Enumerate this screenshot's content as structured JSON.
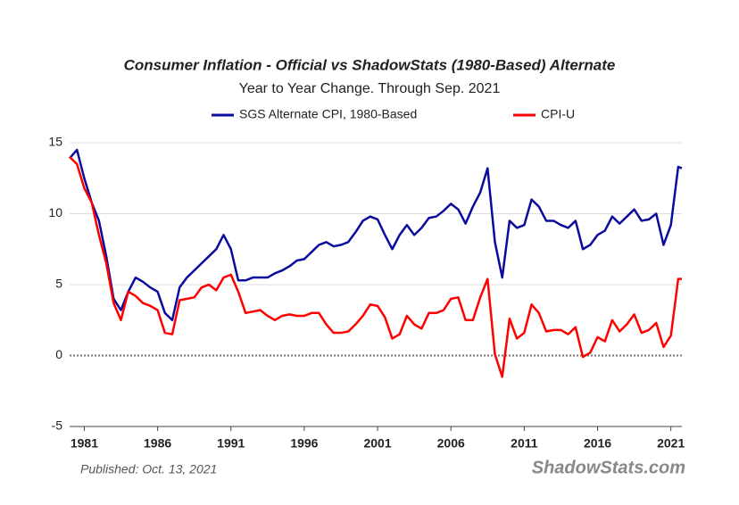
{
  "chart_data": {
    "type": "line",
    "title": "Consumer Inflation - Official vs ShadowStats (1980-Based) Alternate",
    "subtitle": "Year to Year Change. Through Sep. 2021",
    "annotations": [
      "Published: Oct. 13, 2021",
      "ShadowStats.com"
    ],
    "x": [
      1980,
      1980.5,
      1981,
      1981.5,
      1982,
      1982.5,
      1983,
      1983.5,
      1984,
      1984.5,
      1985,
      1985.5,
      1986,
      1986.5,
      1987,
      1987.5,
      1988,
      1988.5,
      1989,
      1989.5,
      1990,
      1990.5,
      1991,
      1991.5,
      1992,
      1992.5,
      1993,
      1993.5,
      1994,
      1994.5,
      1995,
      1995.5,
      1996,
      1996.5,
      1997,
      1997.5,
      1998,
      1998.5,
      1999,
      1999.5,
      2000,
      2000.5,
      2001,
      2001.5,
      2002,
      2002.5,
      2003,
      2003.5,
      2004,
      2004.5,
      2005,
      2005.5,
      2006,
      2006.5,
      2007,
      2007.5,
      2008,
      2008.5,
      2009,
      2009.5,
      2010,
      2010.5,
      2011,
      2011.5,
      2012,
      2012.5,
      2013,
      2013.5,
      2014,
      2014.5,
      2015,
      2015.5,
      2016,
      2016.5,
      2017,
      2017.5,
      2018,
      2018.5,
      2019,
      2019.5,
      2020,
      2020.5,
      2021,
      2021.5,
      2021.75
    ],
    "series": [
      {
        "name": "SGS Alternate CPI, 1980-Based",
        "color": "#0a0a9e",
        "values": [
          13.9,
          14.5,
          12.5,
          10.8,
          9.5,
          7.0,
          4.0,
          3.2,
          4.5,
          5.5,
          5.2,
          4.8,
          4.5,
          3.0,
          2.5,
          4.8,
          5.5,
          6.0,
          6.5,
          7.0,
          7.5,
          8.5,
          7.5,
          5.3,
          5.3,
          5.5,
          5.5,
          5.5,
          5.8,
          6.0,
          6.3,
          6.7,
          6.8,
          7.3,
          7.8,
          8.0,
          7.7,
          7.8,
          8.0,
          8.7,
          9.5,
          9.8,
          9.6,
          8.5,
          7.5,
          8.5,
          9.2,
          8.5,
          9.0,
          9.7,
          9.8,
          10.2,
          10.7,
          10.3,
          9.3,
          10.5,
          11.5,
          13.2,
          8.0,
          5.5,
          9.5,
          9.0,
          9.2,
          11.0,
          10.5,
          9.5,
          9.5,
          9.2,
          9.0,
          9.5,
          7.5,
          7.8,
          8.5,
          8.8,
          9.8,
          9.3,
          9.8,
          10.3,
          9.5,
          9.6,
          10.0,
          7.8,
          9.2,
          13.3,
          13.2
        ]
      },
      {
        "name": "CPI-U",
        "color": "#ff0000",
        "values": [
          14.0,
          13.5,
          11.8,
          10.8,
          8.5,
          6.5,
          3.7,
          2.5,
          4.5,
          4.2,
          3.7,
          3.5,
          3.2,
          1.6,
          1.5,
          3.9,
          4.0,
          4.1,
          4.8,
          5.0,
          4.6,
          5.5,
          5.7,
          4.5,
          3.0,
          3.1,
          3.2,
          2.8,
          2.5,
          2.8,
          2.9,
          2.8,
          2.8,
          3.0,
          3.0,
          2.2,
          1.6,
          1.6,
          1.7,
          2.2,
          2.8,
          3.6,
          3.5,
          2.7,
          1.2,
          1.5,
          2.8,
          2.2,
          1.9,
          3.0,
          3.0,
          3.2,
          4.0,
          4.1,
          2.5,
          2.5,
          4.1,
          5.4,
          0.1,
          -1.5,
          2.6,
          1.2,
          1.6,
          3.6,
          3.0,
          1.7,
          1.8,
          1.8,
          1.5,
          2.0,
          -0.1,
          0.2,
          1.3,
          1.0,
          2.5,
          1.7,
          2.2,
          2.9,
          1.6,
          1.8,
          2.3,
          0.6,
          1.4,
          5.4,
          5.4
        ]
      }
    ],
    "xlim": [
      1980,
      2021.75
    ],
    "xticks": [
      1981,
      1986,
      1991,
      1996,
      2001,
      2006,
      2011,
      2016,
      2021
    ],
    "ylim": [
      -5,
      15
    ],
    "yticks": [
      -5,
      0,
      5,
      10,
      15
    ],
    "grid": true,
    "legend": "top"
  }
}
